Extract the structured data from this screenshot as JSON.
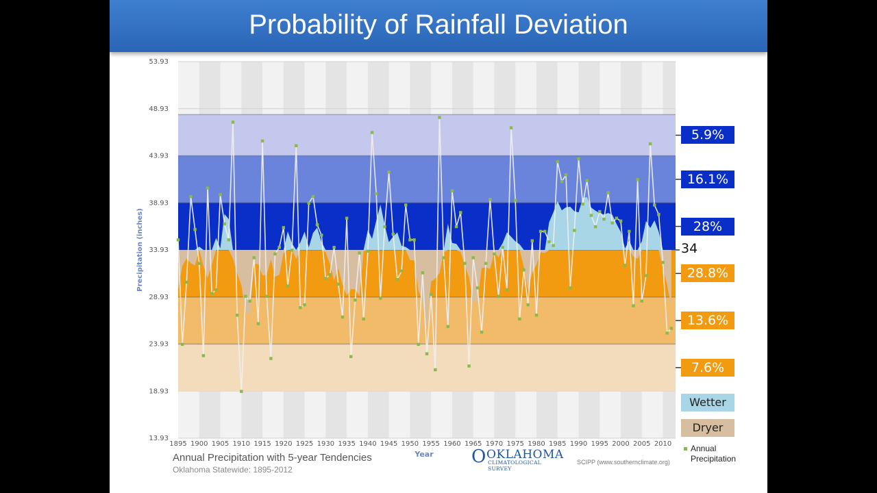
{
  "slide_title": "Probability of Rainfall Deviation",
  "chart_data": {
    "type": "line",
    "title": "Annual Precipitation with 5-year Tendencies",
    "subtitle": "Oklahoma Statewide: 1895-2012",
    "xlabel": "Year",
    "ylabel": "Precipitation (inches)",
    "xlim": [
      1895,
      2013
    ],
    "ylim": [
      13.93,
      53.93
    ],
    "y_ticks": [
      "13.93",
      "18.93",
      "23.93",
      "28.93",
      "33.93",
      "38.93",
      "43.93",
      "48.93",
      "53.93"
    ],
    "x_ticks": [
      "1895",
      "1900",
      "1905",
      "1910",
      "1915",
      "1920",
      "1925",
      "1930",
      "1935",
      "1940",
      "1945",
      "1950",
      "1955",
      "1960",
      "1965",
      "1970",
      "1975",
      "1980",
      "1985",
      "1990",
      "1995",
      "2000",
      "2005",
      "2010"
    ],
    "mean": 33.93,
    "mean_label": "34",
    "bands": [
      {
        "from": 43.93,
        "to": 48.3,
        "probability": "5.9%",
        "color": "#c4c8ec",
        "label_color": "#0a2fc8"
      },
      {
        "from": 38.93,
        "to": 43.93,
        "probability": "16.1%",
        "color": "#6a84dc",
        "label_color": "#0a2fc8"
      },
      {
        "from": 33.93,
        "to": 38.93,
        "probability": "28%",
        "color": "#0a2fc8",
        "label_color": "#0a2fc8"
      },
      {
        "from": 28.93,
        "to": 33.93,
        "probability": "28.8%",
        "color": "#f29a10",
        "label_color": "#f29a10"
      },
      {
        "from": 23.93,
        "to": 28.93,
        "probability": "13.6%",
        "color": "#f1bb6a",
        "label_color": "#f29a10"
      },
      {
        "from": 18.93,
        "to": 23.93,
        "probability": "7.6%",
        "color": "#f2dcbc",
        "label_color": "#f29a10"
      }
    ],
    "years": [
      1895,
      1896,
      1897,
      1898,
      1899,
      1900,
      1901,
      1902,
      1903,
      1904,
      1905,
      1906,
      1907,
      1908,
      1909,
      1910,
      1911,
      1912,
      1913,
      1914,
      1915,
      1916,
      1917,
      1918,
      1919,
      1920,
      1921,
      1922,
      1923,
      1924,
      1925,
      1926,
      1927,
      1928,
      1929,
      1930,
      1931,
      1932,
      1933,
      1934,
      1935,
      1936,
      1937,
      1938,
      1939,
      1940,
      1941,
      1942,
      1943,
      1944,
      1945,
      1946,
      1947,
      1948,
      1949,
      1950,
      1951,
      1952,
      1953,
      1954,
      1955,
      1956,
      1957,
      1958,
      1959,
      1960,
      1961,
      1962,
      1963,
      1964,
      1965,
      1966,
      1967,
      1968,
      1969,
      1970,
      1971,
      1972,
      1973,
      1974,
      1975,
      1976,
      1977,
      1978,
      1979,
      1980,
      1981,
      1982,
      1983,
      1984,
      1985,
      1986,
      1987,
      1988,
      1989,
      1990,
      1991,
      1992,
      1993,
      1994,
      1995,
      1996,
      1997,
      1998,
      1999,
      2000,
      2001,
      2002,
      2003,
      2004,
      2005,
      2006,
      2007,
      2008,
      2009,
      2010,
      2011,
      2012
    ],
    "series": [
      {
        "name": "Annual Precipitation",
        "values": [
          35.0,
          23.9,
          30.5,
          39.6,
          36.1,
          32.5,
          22.7,
          40.5,
          29.3,
          29.7,
          39.8,
          36.7,
          35.0,
          47.5,
          27.0,
          18.9,
          29.0,
          28.5,
          33.1,
          26.1,
          45.5,
          29.0,
          22.4,
          33.5,
          34.2,
          36.3,
          30.1,
          33.9,
          45.0,
          27.8,
          28.1,
          38.9,
          39.6,
          36.6,
          35.5,
          30.9,
          31.3,
          34.2,
          30.3,
          26.8,
          37.3,
          22.6,
          28.6,
          33.6,
          26.6,
          33.8,
          46.4,
          39.9,
          28.8,
          36.4,
          42.2,
          35.6,
          30.8,
          31.7,
          38.7,
          35.0,
          35.0,
          23.9,
          31.5,
          22.9,
          29.2,
          21.2,
          48.0,
          33.1,
          25.8,
          40.2,
          36.4,
          37.9,
          32.5,
          21.6,
          33.1,
          29.9,
          25.2,
          32.5,
          39.3,
          33.5,
          29.0,
          34.2,
          29.7,
          46.9,
          39.2,
          26.6,
          31.8,
          28.1,
          34.9,
          27.0,
          35.9,
          35.9,
          34.8,
          34.4,
          43.3,
          41.2,
          41.9,
          29.9,
          36.0,
          43.6,
          38.8,
          41.3,
          37.6,
          36.4,
          38.0,
          37.2,
          40.0,
          36.8,
          37.3,
          37.0,
          32.3,
          35.9,
          28.0,
          41.4,
          28.5,
          31.2,
          45.2,
          38.7,
          37.7,
          32.6,
          25.1,
          25.6
        ]
      }
    ],
    "tendency_legend": [
      {
        "label": "Wetter",
        "color": "#a8d6e6"
      },
      {
        "label": "Dryer",
        "color": "#d7bea0"
      }
    ],
    "annual_legend_label": "Annual Precipitation"
  },
  "footer": {
    "logo_top": "OKLAHOMA",
    "logo_bottom": "CLIMATOLOGICAL SURVEY",
    "credit": "SCIPP (www.southernclimate.org)"
  }
}
